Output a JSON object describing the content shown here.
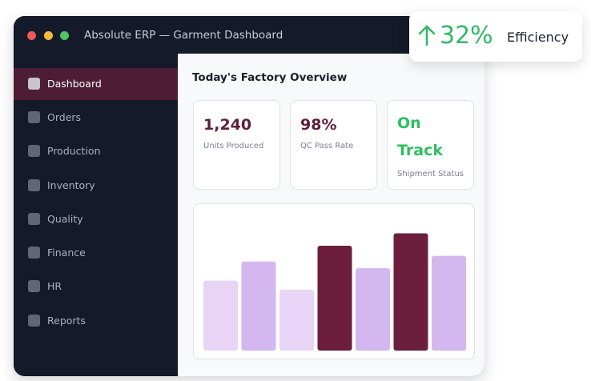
{
  "window": {
    "title": "Absolute ERP — Garment Dashboard"
  },
  "sidebar": {
    "items": [
      {
        "label": "Dashboard",
        "active": true
      },
      {
        "label": "Orders",
        "active": false
      },
      {
        "label": "Production",
        "active": false
      },
      {
        "label": "Inventory",
        "active": false
      },
      {
        "label": "Quality",
        "active": false
      },
      {
        "label": "Finance",
        "active": false
      },
      {
        "label": "HR",
        "active": false
      },
      {
        "label": "Reports",
        "active": false
      }
    ]
  },
  "main": {
    "title": "Today's Factory Overview",
    "cards": [
      {
        "value": "1,240",
        "label": "Units Produced"
      },
      {
        "value": "98%",
        "label": "QC Pass Rate"
      },
      {
        "value": "On Track",
        "label": "Shipment Status"
      }
    ]
  },
  "badge": {
    "value": "32%",
    "label": "Efficiency",
    "arrow_icon": "arrow-up-icon"
  },
  "colors": {
    "accent": "#5e1f38",
    "success": "#2fbe62",
    "bar_light": "#e8d5f5",
    "bar_medium": "#d4b7ee",
    "bar_dark": "#6b1f3d",
    "sidebar_bg": "#141a29",
    "active_bg": "#4c1d34"
  },
  "chart_data": {
    "type": "bar",
    "categories": [
      "",
      "",
      "",
      "",
      "",
      "",
      ""
    ],
    "values": [
      62,
      79,
      54,
      93,
      73,
      104,
      84
    ],
    "ylim": [
      0,
      110
    ],
    "grid": false,
    "legend": "none",
    "bar_colors": [
      "#e8d5f5",
      "#d4b7ee",
      "#e8d5f5",
      "#6b1f3d",
      "#d4b7ee",
      "#6b1f3d",
      "#d4b7ee"
    ]
  }
}
